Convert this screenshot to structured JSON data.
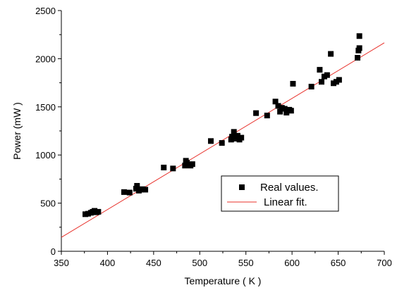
{
  "chart_data": {
    "type": "scatter",
    "xlabel": "Temperature ( K )",
    "ylabel": "Power (mW )",
    "xlim": [
      350,
      700
    ],
    "ylim": [
      0,
      2500
    ],
    "xticks": [
      350,
      400,
      450,
      500,
      550,
      600,
      650,
      700
    ],
    "yticks": [
      0,
      500,
      1000,
      1500,
      2000,
      2500
    ],
    "grid": false,
    "legend_position": "lower-right",
    "series": [
      {
        "name": "Real values.",
        "kind": "points",
        "marker": "square",
        "color": "#000000",
        "points": [
          [
            376,
            385
          ],
          [
            379,
            390
          ],
          [
            382,
            400
          ],
          [
            384,
            410
          ],
          [
            386,
            420
          ],
          [
            388,
            405
          ],
          [
            390,
            410
          ],
          [
            418,
            615
          ],
          [
            424,
            610
          ],
          [
            431,
            650
          ],
          [
            432,
            680
          ],
          [
            434,
            630
          ],
          [
            436,
            640
          ],
          [
            438,
            645
          ],
          [
            441,
            640
          ],
          [
            461,
            870
          ],
          [
            471,
            860
          ],
          [
            484,
            890
          ],
          [
            485,
            940
          ],
          [
            486,
            920
          ],
          [
            488,
            900
          ],
          [
            490,
            890
          ],
          [
            492,
            905
          ],
          [
            512,
            1145
          ],
          [
            524,
            1125
          ],
          [
            534,
            1160
          ],
          [
            535,
            1190
          ],
          [
            537,
            1240
          ],
          [
            539,
            1170
          ],
          [
            541,
            1200
          ],
          [
            543,
            1160
          ],
          [
            545,
            1180
          ],
          [
            561,
            1435
          ],
          [
            573,
            1410
          ],
          [
            582,
            1555
          ],
          [
            585,
            1510
          ],
          [
            587,
            1450
          ],
          [
            589,
            1490
          ],
          [
            592,
            1480
          ],
          [
            594,
            1440
          ],
          [
            597,
            1470
          ],
          [
            599,
            1460
          ],
          [
            601,
            1740
          ],
          [
            621,
            1710
          ],
          [
            630,
            1885
          ],
          [
            632,
            1760
          ],
          [
            635,
            1815
          ],
          [
            638,
            1830
          ],
          [
            642,
            2050
          ],
          [
            645,
            1745
          ],
          [
            648,
            1760
          ],
          [
            651,
            1780
          ],
          [
            671,
            2010
          ],
          [
            672,
            2085
          ],
          [
            673,
            2110
          ],
          [
            673,
            2235
          ]
        ]
      },
      {
        "name": "Linear fit.",
        "kind": "line",
        "color": "#e8302a",
        "points": [
          [
            350,
            145
          ],
          [
            700,
            2165
          ]
        ]
      }
    ]
  }
}
